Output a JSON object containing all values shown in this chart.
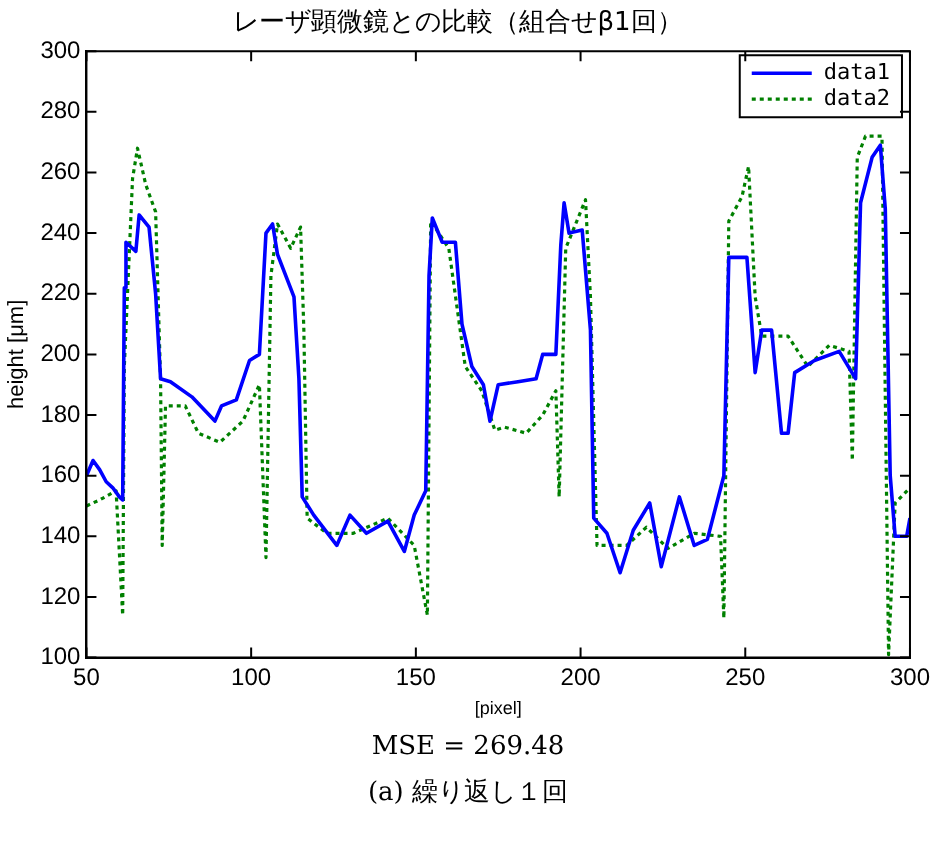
{
  "chart_data": {
    "type": "line",
    "title": "レーザ顕微鏡との比較（組合せβ1回）",
    "xlabel": "[pixel]",
    "ylabel": "height [μm]",
    "xlim": [
      50,
      300
    ],
    "xticks": [
      50,
      100,
      150,
      200,
      250,
      300
    ],
    "ylim": [
      100,
      300
    ],
    "yticks": [
      100,
      120,
      140,
      160,
      180,
      200,
      220,
      240,
      260,
      280,
      300
    ],
    "grid": false,
    "legend": "top right",
    "marker": "none",
    "annotations": [
      "MSE = 269.48",
      "(a) 繰り返し１回"
    ],
    "series": [
      {
        "name": "data1",
        "color": "#0000ff",
        "line_style": "solid",
        "x": [
          50,
          52,
          54,
          56,
          58,
          60,
          61,
          61.5,
          62,
          65,
          66,
          69,
          71,
          72.5,
          75.5,
          82,
          89,
          91,
          95.5,
          99.5,
          102.5,
          104.5,
          106.5,
          108,
          113,
          114.5,
          115.5,
          119,
          126,
          130,
          135,
          141.5,
          146.5,
          149.5,
          153,
          154,
          155,
          158,
          162,
          164,
          167,
          170.5,
          172.5,
          175,
          181,
          186.5,
          188.5,
          192.5,
          194,
          195,
          196.5,
          200.5,
          203,
          204,
          208,
          212,
          216,
          221,
          224.5,
          230,
          234.5,
          238.5,
          243.5,
          245,
          250.5,
          253,
          255,
          258,
          261,
          263,
          265,
          271,
          278.5,
          283.5,
          285,
          288.5,
          291,
          292.5,
          294,
          295.5,
          299,
          300
        ],
        "values": [
          160,
          165,
          162,
          158,
          156,
          153,
          152,
          222,
          237,
          234,
          246,
          242,
          220,
          192,
          191,
          186,
          178,
          183,
          185,
          198,
          200,
          240,
          243,
          233,
          219,
          192,
          153,
          147,
          137,
          147,
          141,
          145,
          135,
          147,
          155,
          226,
          245,
          237,
          237,
          210,
          196,
          190,
          178,
          190,
          191,
          192,
          200,
          200,
          236,
          250,
          240,
          241,
          208,
          146,
          141,
          128,
          142,
          151,
          130,
          153,
          137,
          139,
          160,
          232,
          232,
          194,
          208,
          208,
          174,
          174,
          194,
          198,
          201,
          192,
          250,
          265,
          269,
          248,
          160,
          140,
          140,
          146
        ]
      },
      {
        "name": "data2",
        "color": "#008000",
        "line_style": "dotted",
        "x": [
          50,
          54,
          59,
          61,
          61.5,
          64,
          65.5,
          68,
          71,
          72.5,
          73,
          74,
          80,
          84,
          90.5,
          97.5,
          102.5,
          104.5,
          106,
          108,
          112,
          115,
          116,
          117,
          123,
          131,
          141.5,
          149.5,
          153.5,
          154.5,
          160,
          165,
          170,
          174,
          177,
          183.5,
          188.5,
          192.5,
          193.5,
          195.5,
          201.5,
          203,
          205,
          214,
          220,
          226.5,
          234.5,
          242.5,
          243.5,
          245,
          249,
          251,
          253,
          255,
          263,
          269,
          275.5,
          281.5,
          282.5,
          284,
          286.5,
          291.5,
          293.5,
          295.5,
          300
        ],
        "values": [
          150,
          152,
          155,
          114,
          196,
          258,
          268,
          256,
          247,
          192,
          137,
          183,
          183,
          174,
          171,
          178,
          190,
          133,
          226,
          243,
          235,
          242,
          208,
          146,
          141,
          141,
          146,
          137,
          114,
          244,
          235,
          196,
          188,
          175,
          176,
          174,
          180,
          188,
          153,
          235,
          251,
          219,
          137,
          137,
          143,
          136,
          141,
          140,
          113,
          244,
          252,
          262,
          219,
          206,
          206,
          196,
          203,
          201,
          165,
          265,
          272,
          272,
          101,
          151,
          156
        ]
      }
    ]
  }
}
